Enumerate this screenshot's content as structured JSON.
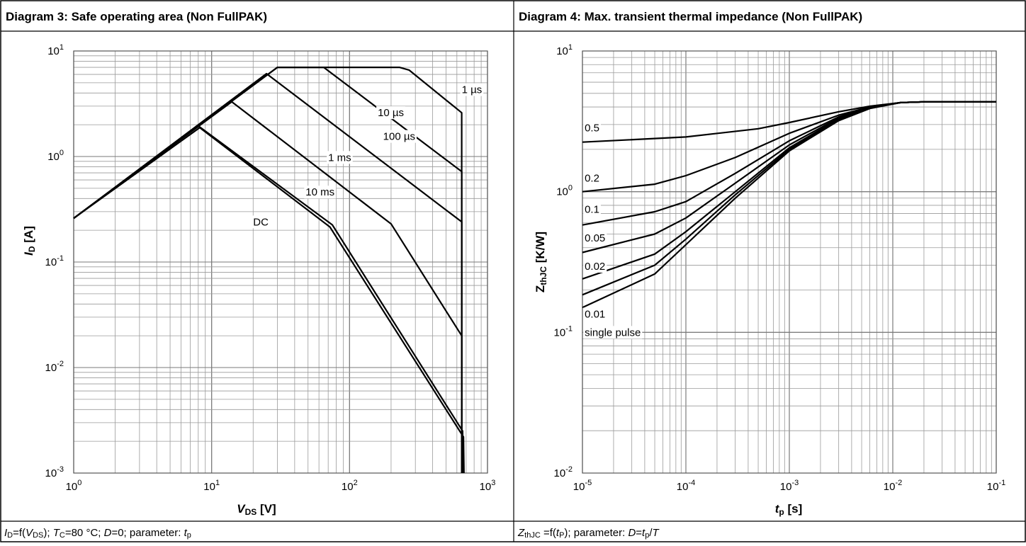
{
  "header": {
    "left": "Diagram 3: Safe operating area (Non FullPAK)",
    "right": "Diagram 4: Max. transient thermal impedance (Non FullPAK)"
  },
  "caption": {
    "left": {
      "id_sym": "I",
      "id_sub": "D",
      "eq_f": "=f(",
      "vds_sym": "V",
      "vds_sub": "DS",
      "after_vds": "); ",
      "tc_sym": "T",
      "tc_sub": "C",
      "tc_val": "=80 °C; ",
      "d_sym": "D",
      "d_val": "=0; parameter: ",
      "tp_sym": "t",
      "tp_sub": "p"
    },
    "right": {
      "z_sym": "Z",
      "z_sub": "thJC",
      "eq_f": " =f(",
      "t_sym": "t",
      "t_sub": "P",
      "after_t": "); parameter: ",
      "d_sym": "D",
      "d_eq": "=",
      "tp_sym": "t",
      "tp_sub": "p",
      "slash": "/",
      "T_sym": "T"
    }
  },
  "chart_data": [
    {
      "type": "line",
      "title": "Diagram 3: Safe operating area (Non FullPAK)",
      "xlabel": {
        "sym": "V",
        "sub": "DS",
        "unit": " [V]"
      },
      "ylabel": {
        "sym": "I",
        "sub": "D",
        "unit": " [A]"
      },
      "xscale": "log",
      "yscale": "log",
      "xlim": [
        1,
        1000
      ],
      "ylim": [
        0.001,
        10
      ],
      "x_ticks": [
        {
          "base": "10",
          "exp": "0"
        },
        {
          "base": "10",
          "exp": "1"
        },
        {
          "base": "10",
          "exp": "2"
        },
        {
          "base": "10",
          "exp": "3"
        }
      ],
      "y_ticks": [
        {
          "base": "10",
          "exp": "-3"
        },
        {
          "base": "10",
          "exp": "-2"
        },
        {
          "base": "10",
          "exp": "-1"
        },
        {
          "base": "10",
          "exp": "0"
        },
        {
          "base": "10",
          "exp": "1"
        }
      ],
      "grid": true,
      "series": [
        {
          "name": "1 µs",
          "label_at": [
            650,
            4.3
          ],
          "points": [
            [
              1,
              0.26
            ],
            [
              30,
              7.0
            ],
            [
              230,
              7.0
            ],
            [
              270,
              6.6
            ],
            [
              650,
              2.6
            ],
            [
              650,
              0.001
            ]
          ]
        },
        {
          "name": "10 µs",
          "label_at": [
            160,
            2.6
          ],
          "points": [
            [
              1,
              0.26
            ],
            [
              30,
              7.0
            ],
            [
              65,
              7.0
            ],
            [
              650,
              0.72
            ],
            [
              650,
              0.001
            ]
          ]
        },
        {
          "name": "100 µs",
          "label_at": [
            175,
            1.55
          ],
          "points": [
            [
              1,
              0.26
            ],
            [
              25,
              6.1
            ],
            [
              650,
              0.24
            ],
            [
              650,
              0.001
            ]
          ]
        },
        {
          "name": "1 ms",
          "label_at": [
            70,
            0.98
          ],
          "points": [
            [
              1,
              0.26
            ],
            [
              14,
              3.3
            ],
            [
              200,
              0.23
            ],
            [
              650,
              0.02
            ],
            [
              650,
              0.001
            ]
          ]
        },
        {
          "name": "10 ms",
          "label_at": [
            48,
            0.46
          ],
          "points": [
            [
              1,
              0.26
            ],
            [
              8,
              1.95
            ],
            [
              75,
              0.225
            ],
            [
              660,
              0.0025
            ],
            [
              665,
              0.001
            ]
          ]
        },
        {
          "name": "DC",
          "label_at": [
            20,
            0.24
          ],
          "points": [
            [
              1,
              0.26
            ],
            [
              8.2,
              1.88
            ],
            [
              72,
              0.215
            ],
            [
              670,
              0.0022
            ],
            [
              675,
              0.001
            ]
          ]
        }
      ]
    },
    {
      "type": "line",
      "title": "Diagram 4: Max. transient thermal impedance (Non FullPAK)",
      "xlabel": {
        "sym": "t",
        "sub": "p",
        "unit": " [s]"
      },
      "ylabel": {
        "sym": "Z",
        "sub": "thJC",
        "unit": " [K/W]"
      },
      "xscale": "log",
      "yscale": "log",
      "xlim": [
        1e-05,
        0.1
      ],
      "ylim": [
        0.01,
        10
      ],
      "x_ticks": [
        {
          "base": "10",
          "exp": "-5"
        },
        {
          "base": "10",
          "exp": "-4"
        },
        {
          "base": "10",
          "exp": "-3"
        },
        {
          "base": "10",
          "exp": "-2"
        },
        {
          "base": "10",
          "exp": "-1"
        }
      ],
      "y_ticks": [
        {
          "base": "10",
          "exp": "-2"
        },
        {
          "base": "10",
          "exp": "-1"
        },
        {
          "base": "10",
          "exp": "0"
        },
        {
          "base": "10",
          "exp": "1"
        }
      ],
      "grid": true,
      "series": [
        {
          "name": "0.5",
          "label_at": [
            1.05e-05,
            2.85
          ],
          "points": [
            [
              1e-05,
              2.25
            ],
            [
              0.0001,
              2.45
            ],
            [
              0.0005,
              2.8
            ],
            [
              0.001,
              3.1
            ],
            [
              0.003,
              3.7
            ],
            [
              0.006,
              4.05
            ],
            [
              0.012,
              4.3
            ],
            [
              0.02,
              4.35
            ],
            [
              0.1,
              4.35
            ]
          ]
        },
        {
          "name": "0.2",
          "label_at": [
            1.05e-05,
            1.25
          ],
          "points": [
            [
              1e-05,
              1.0
            ],
            [
              5e-05,
              1.13
            ],
            [
              0.0001,
              1.3
            ],
            [
              0.0003,
              1.75
            ],
            [
              0.001,
              2.6
            ],
            [
              0.003,
              3.5
            ],
            [
              0.006,
              4.0
            ],
            [
              0.012,
              4.3
            ],
            [
              0.02,
              4.35
            ],
            [
              0.1,
              4.35
            ]
          ]
        },
        {
          "name": "0.1",
          "label_at": [
            1.05e-05,
            0.75
          ],
          "points": [
            [
              1e-05,
              0.58
            ],
            [
              5e-05,
              0.72
            ],
            [
              0.0001,
              0.85
            ],
            [
              0.0003,
              1.35
            ],
            [
              0.001,
              2.3
            ],
            [
              0.003,
              3.4
            ],
            [
              0.006,
              4.0
            ],
            [
              0.012,
              4.3
            ],
            [
              0.02,
              4.35
            ],
            [
              0.1,
              4.35
            ]
          ]
        },
        {
          "name": "0.05",
          "label_at": [
            1.05e-05,
            0.47
          ],
          "points": [
            [
              1e-05,
              0.37
            ],
            [
              5e-05,
              0.5
            ],
            [
              0.0001,
              0.65
            ],
            [
              0.0003,
              1.15
            ],
            [
              0.001,
              2.15
            ],
            [
              0.003,
              3.35
            ],
            [
              0.006,
              4.0
            ],
            [
              0.012,
              4.3
            ],
            [
              0.02,
              4.35
            ],
            [
              0.1,
              4.35
            ]
          ]
        },
        {
          "name": "0.02",
          "label_at": [
            1.05e-05,
            0.295
          ],
          "points": [
            [
              1e-05,
              0.24
            ],
            [
              5e-05,
              0.36
            ],
            [
              0.0001,
              0.52
            ],
            [
              0.0003,
              1.0
            ],
            [
              0.001,
              2.05
            ],
            [
              0.003,
              3.3
            ],
            [
              0.006,
              3.95
            ],
            [
              0.012,
              4.3
            ],
            [
              0.02,
              4.35
            ],
            [
              0.1,
              4.35
            ]
          ]
        },
        {
          "name": "0.01",
          "label_at": [
            1.05e-05,
            0.135
          ],
          "points": [
            [
              1e-05,
              0.185
            ],
            [
              5e-05,
              0.3
            ],
            [
              0.0001,
              0.46
            ],
            [
              0.0003,
              0.95
            ],
            [
              0.001,
              2.0
            ],
            [
              0.003,
              3.25
            ],
            [
              0.006,
              3.95
            ],
            [
              0.012,
              4.3
            ],
            [
              0.02,
              4.35
            ],
            [
              0.1,
              4.35
            ]
          ]
        },
        {
          "name": "single pulse",
          "label_at": [
            1.05e-05,
            0.1
          ],
          "points": [
            [
              1e-05,
              0.15
            ],
            [
              5e-05,
              0.26
            ],
            [
              0.0001,
              0.42
            ],
            [
              0.0003,
              0.9
            ],
            [
              0.001,
              1.95
            ],
            [
              0.003,
              3.2
            ],
            [
              0.006,
              3.9
            ],
            [
              0.012,
              4.3
            ],
            [
              0.02,
              4.35
            ],
            [
              0.1,
              4.35
            ]
          ]
        }
      ]
    }
  ]
}
